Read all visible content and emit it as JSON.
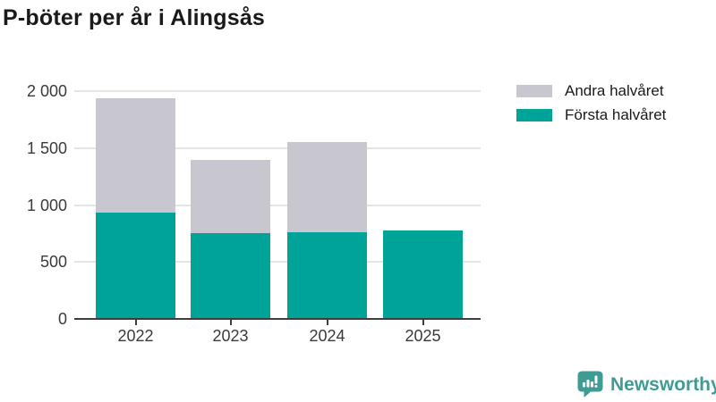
{
  "title": "P-böter per år i Alingsås",
  "chart_data": {
    "type": "bar",
    "stacked": true,
    "title": "P-böter per år i Alingsås",
    "categories": [
      "2022",
      "2023",
      "2024",
      "2025"
    ],
    "series": [
      {
        "name": "Första halvåret",
        "color": "#00a398",
        "values": [
          935,
          750,
          760,
          775
        ]
      },
      {
        "name": "Andra halvåret",
        "color": "#c8c7cf",
        "values": [
          1000,
          650,
          790,
          0
        ]
      }
    ],
    "totals": [
      1935,
      1400,
      1550,
      775
    ],
    "xlabel": "",
    "ylabel": "",
    "ylim": [
      0,
      2000
    ],
    "yticks": [
      0,
      500,
      1000,
      1500,
      2000
    ],
    "ytick_labels": [
      "0",
      "500",
      "1 000",
      "1 500",
      "2 000"
    ],
    "grid": "horizontal",
    "legend_position": "top-right"
  },
  "legend": {
    "items": [
      {
        "label": "Andra halvåret",
        "color": "#c8c7cf"
      },
      {
        "label": "Första halvåret",
        "color": "#00a398"
      }
    ]
  },
  "colors": {
    "first_half": "#00a398",
    "second_half": "#c8c7cf",
    "gridline": "#e5e5e5",
    "axis": "#3d3d3d",
    "title_text": "#1a1a1a",
    "axis_text": "#3a3a3a",
    "brand_teal": "#3f9b94"
  },
  "branding": {
    "logo_text": "Newsworthy",
    "logo_icon": "speech-bubble-bar-chart-icon"
  }
}
